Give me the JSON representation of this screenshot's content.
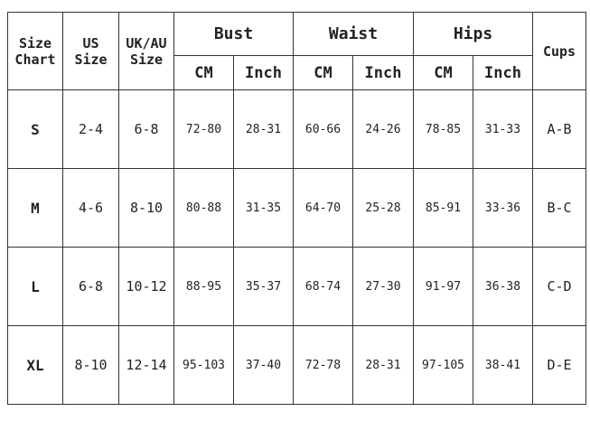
{
  "headers": {
    "size_chart": [
      "Size",
      "Chart"
    ],
    "us_size": [
      "US",
      "Size"
    ],
    "ukau_size": [
      "UK/AU",
      "Size"
    ],
    "bust": "Bust",
    "waist": "Waist",
    "hips": "Hips",
    "cups": "Cups",
    "cm": "CM",
    "inch": "Inch"
  },
  "rows": [
    {
      "size": "S",
      "us": "2-4",
      "ukau": "6-8",
      "bust_cm": "72-80",
      "bust_in": "28-31",
      "waist_cm": "60-66",
      "waist_in": "24-26",
      "hips_cm": "78-85",
      "hips_in": "31-33",
      "cups": "A-B"
    },
    {
      "size": "M",
      "us": "4-6",
      "ukau": "8-10",
      "bust_cm": "80-88",
      "bust_in": "31-35",
      "waist_cm": "64-70",
      "waist_in": "25-28",
      "hips_cm": "85-91",
      "hips_in": "33-36",
      "cups": "B-C"
    },
    {
      "size": "L",
      "us": "6-8",
      "ukau": "10-12",
      "bust_cm": "88-95",
      "bust_in": "35-37",
      "waist_cm": "68-74",
      "waist_in": "27-30",
      "hips_cm": "91-97",
      "hips_in": "36-38",
      "cups": "C-D"
    },
    {
      "size": "XL",
      "us": "8-10",
      "ukau": "12-14",
      "bust_cm": "95-103",
      "bust_in": "37-40",
      "waist_cm": "72-78",
      "waist_in": "28-31",
      "hips_cm": "97-105",
      "hips_in": "38-41",
      "cups": "D-E"
    }
  ]
}
